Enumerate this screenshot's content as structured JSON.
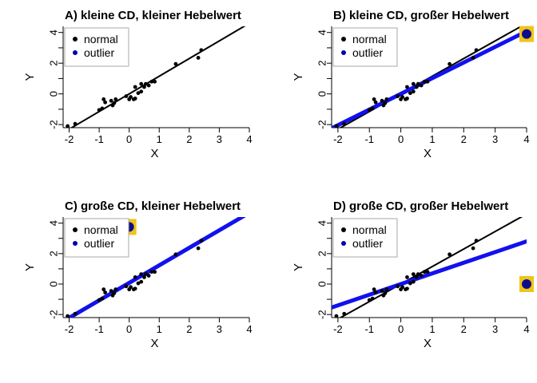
{
  "chart_data": [
    {
      "type": "scatter",
      "title": "A)  kleine CD, kleiner Hebelwert",
      "xlabel": "X",
      "ylabel": "Y",
      "xlim": [
        -2.2,
        4.0
      ],
      "ylim": [
        -2.2,
        4.4
      ],
      "xticks": [
        -2,
        -1,
        0,
        1,
        2,
        3,
        4
      ],
      "yticks": [
        -2,
        0,
        2,
        4
      ],
      "legend": {
        "position": "top-left",
        "entries": [
          {
            "label": "normal",
            "color": "#000000"
          },
          {
            "label": "outlier",
            "color": "#0000aa"
          }
        ]
      },
      "outlier": null,
      "lines": [
        {
          "name": "normal",
          "intercept": 0.0,
          "slope": 1.15,
          "color": "#000000",
          "width": 2
        }
      ]
    },
    {
      "type": "scatter",
      "title": "B)  kleine CD, großer Hebelwert",
      "xlabel": "X",
      "ylabel": "Y",
      "xlim": [
        -2.2,
        4.0
      ],
      "ylim": [
        -2.2,
        4.4
      ],
      "xticks": [
        -2,
        -1,
        0,
        1,
        2,
        3,
        4
      ],
      "yticks": [
        -2,
        0,
        2,
        4
      ],
      "legend": {
        "position": "top-left",
        "entries": [
          {
            "label": "normal",
            "color": "#000000"
          },
          {
            "label": "outlier",
            "color": "#0000aa"
          }
        ]
      },
      "outlier": {
        "x": 4.0,
        "y": 3.9
      },
      "lines": [
        {
          "name": "normal",
          "intercept": 0.0,
          "slope": 1.15,
          "color": "#000000",
          "width": 2
        },
        {
          "name": "outlier",
          "intercept": 0.0,
          "slope": 1.02,
          "color": "#1111ee",
          "width": 5
        }
      ]
    },
    {
      "type": "scatter",
      "title": "C)  große CD, kleiner Hebelwert",
      "xlabel": "X",
      "ylabel": "Y",
      "xlim": [
        -2.2,
        4.0
      ],
      "ylim": [
        -2.2,
        4.4
      ],
      "xticks": [
        -2,
        -1,
        0,
        1,
        2,
        3,
        4
      ],
      "yticks": [
        -2,
        0,
        2,
        4
      ],
      "legend": {
        "position": "top-left",
        "entries": [
          {
            "label": "normal",
            "color": "#000000"
          },
          {
            "label": "outlier",
            "color": "#0000aa"
          }
        ]
      },
      "outlier": {
        "x": 0.0,
        "y": 3.75
      },
      "lines": [
        {
          "name": "normal",
          "intercept": 0.0,
          "slope": 1.15,
          "color": "#000000",
          "width": 2
        },
        {
          "name": "outlier",
          "intercept": 0.08,
          "slope": 1.15,
          "color": "#1111ee",
          "width": 5
        }
      ]
    },
    {
      "type": "scatter",
      "title": "D)  große CD, großer Hebelwert",
      "xlabel": "X",
      "ylabel": "Y",
      "xlim": [
        -2.2,
        4.0
      ],
      "ylim": [
        -2.2,
        4.4
      ],
      "xticks": [
        -2,
        -1,
        0,
        1,
        2,
        3,
        4
      ],
      "yticks": [
        -2,
        0,
        2,
        4
      ],
      "legend": {
        "position": "top-left",
        "entries": [
          {
            "label": "normal",
            "color": "#000000"
          },
          {
            "label": "outlier",
            "color": "#0000aa"
          }
        ]
      },
      "outlier": {
        "x": 4.0,
        "y": 0.0
      },
      "lines": [
        {
          "name": "normal",
          "intercept": 0.0,
          "slope": 1.15,
          "color": "#000000",
          "width": 2
        },
        {
          "name": "outlier",
          "intercept": 0.0,
          "slope": 0.7,
          "color": "#1111ee",
          "width": 5
        }
      ]
    }
  ],
  "normal_points": [
    [
      -2.05,
      -2.1
    ],
    [
      -1.8,
      -1.95
    ],
    [
      -1.0,
      -1.05
    ],
    [
      -0.9,
      -0.95
    ],
    [
      -0.85,
      -0.35
    ],
    [
      -0.8,
      -0.55
    ],
    [
      -0.6,
      -0.45
    ],
    [
      -0.55,
      -0.75
    ],
    [
      -0.5,
      -0.6
    ],
    [
      -0.45,
      -0.35
    ],
    [
      -0.1,
      -0.15
    ],
    [
      0.0,
      -0.35
    ],
    [
      0.05,
      -0.2
    ],
    [
      0.15,
      -0.35
    ],
    [
      0.2,
      -0.3
    ],
    [
      0.2,
      0.45
    ],
    [
      0.3,
      0.05
    ],
    [
      0.4,
      0.15
    ],
    [
      0.4,
      0.65
    ],
    [
      0.5,
      0.45
    ],
    [
      0.55,
      0.65
    ],
    [
      0.65,
      0.55
    ],
    [
      0.75,
      0.8
    ],
    [
      0.85,
      0.8
    ],
    [
      1.55,
      1.95
    ],
    [
      2.3,
      2.35
    ],
    [
      2.4,
      2.85
    ]
  ],
  "style": {
    "normal_color": "#000000",
    "outlier_color": "#0d0d8a",
    "highlight_color": "#f0c419",
    "blue_line": "#1111ee"
  }
}
